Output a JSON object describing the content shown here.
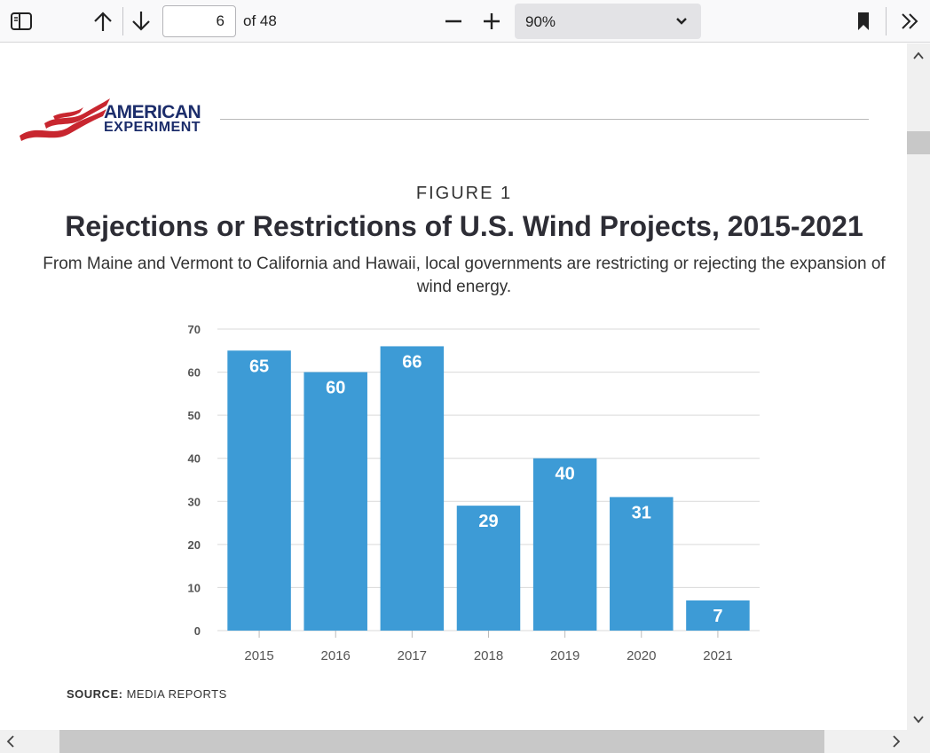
{
  "toolbar": {
    "page_current": "6",
    "page_count": "of 48",
    "zoom": "90%"
  },
  "document": {
    "logo": {
      "line1": "AMERICAN",
      "line2": "EXPERIMENT"
    },
    "figure_label": "FIGURE 1",
    "title": "Rejections or Restrictions of U.S. Wind Projects, 2015-2021",
    "subtitle": "From Maine and Vermont to California and Hawaii, local governments are restricting or rejecting the expansion of wind energy.",
    "source_label": "SOURCE:",
    "source_text": "MEDIA REPORTS"
  },
  "chart_data": {
    "type": "bar",
    "categories": [
      "2015",
      "2016",
      "2017",
      "2018",
      "2019",
      "2020",
      "2021"
    ],
    "values": [
      65,
      60,
      66,
      29,
      40,
      31,
      7
    ],
    "yticks": [
      0,
      10,
      20,
      30,
      40,
      50,
      60,
      70
    ],
    "ylim": [
      0,
      70
    ],
    "grid": true,
    "bar_color": "#3d9bd6"
  },
  "colors": {
    "logo_navy": "#1c2d6b",
    "logo_red": "#c8262f"
  }
}
